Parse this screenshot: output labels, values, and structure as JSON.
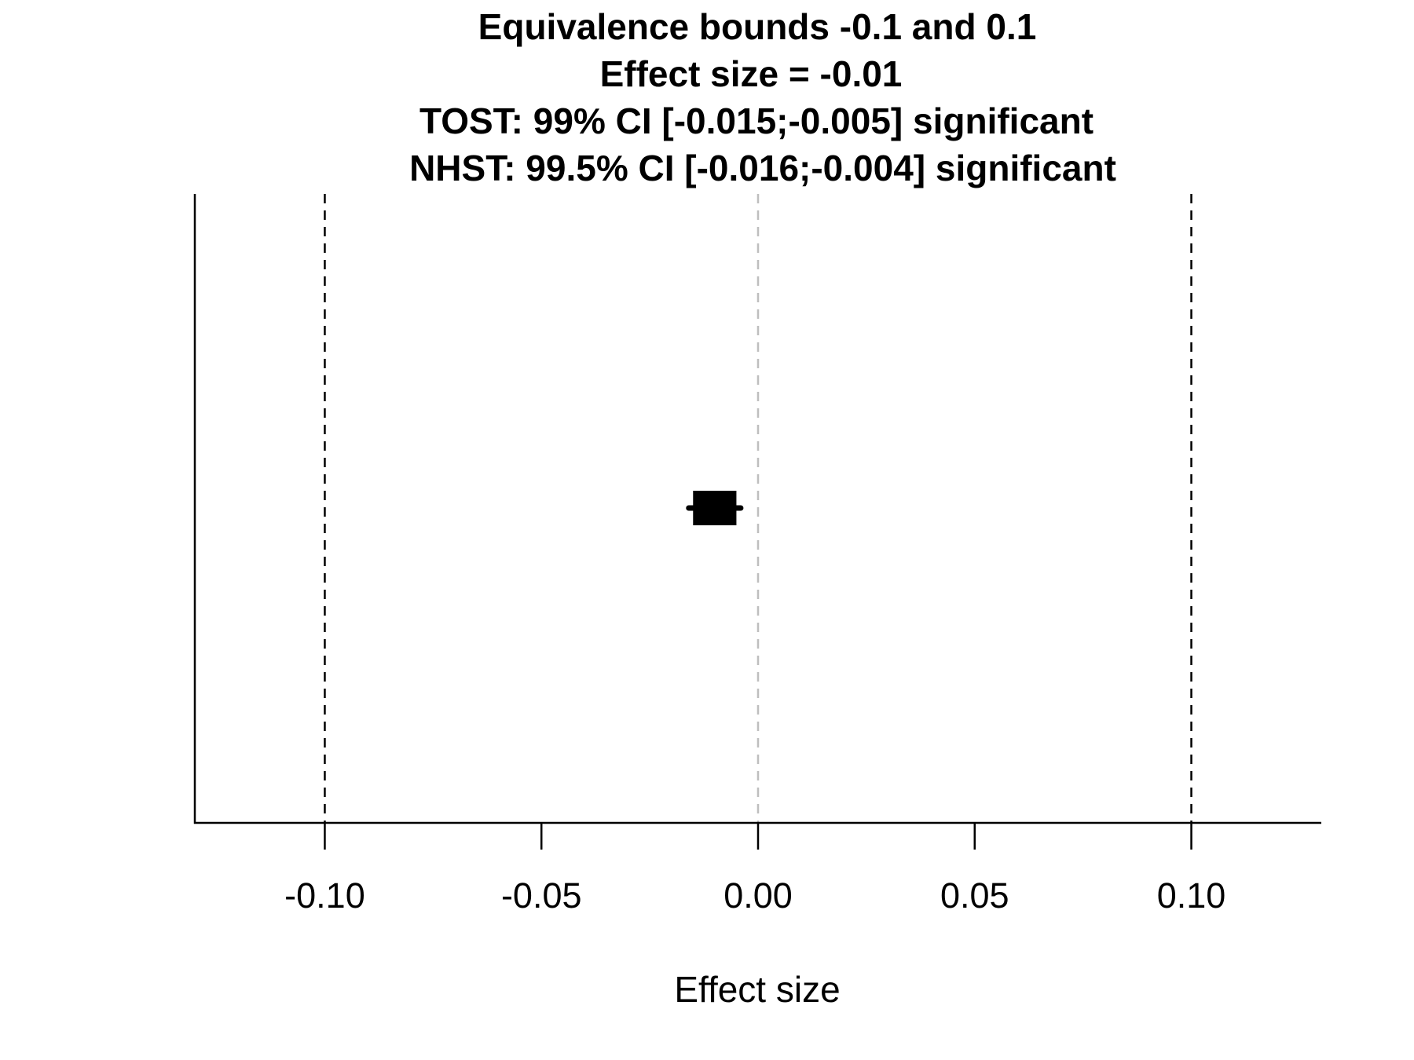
{
  "chart_data": {
    "type": "scatter",
    "title_lines": [
      "Equivalence bounds -0.1 and 0.1",
      "Effect size = -0.01",
      "TOST: 99% CI [-0.015;-0.005] significant",
      "NHST: 99.5% CI [-0.016;-0.004] significant"
    ],
    "xlabel": "Effect size",
    "ylabel": "",
    "xlim": [
      -0.13,
      0.13
    ],
    "x_ticks": [
      -0.1,
      -0.05,
      0.0,
      0.05,
      0.1
    ],
    "x_tick_labels": [
      "-0.10",
      "-0.05",
      "0.00",
      "0.05",
      "0.10"
    ],
    "equivalence_bounds": [
      -0.1,
      0.1
    ],
    "reference_line": 0,
    "point_estimate": -0.01,
    "tost_ci": [
      -0.015,
      -0.005
    ],
    "nhst_ci": [
      -0.016,
      -0.004
    ],
    "grid": false,
    "colors": {
      "bounds_line": "#000000",
      "reference_line": "#bebebe",
      "marker": "#000000",
      "axis": "#000000"
    }
  }
}
